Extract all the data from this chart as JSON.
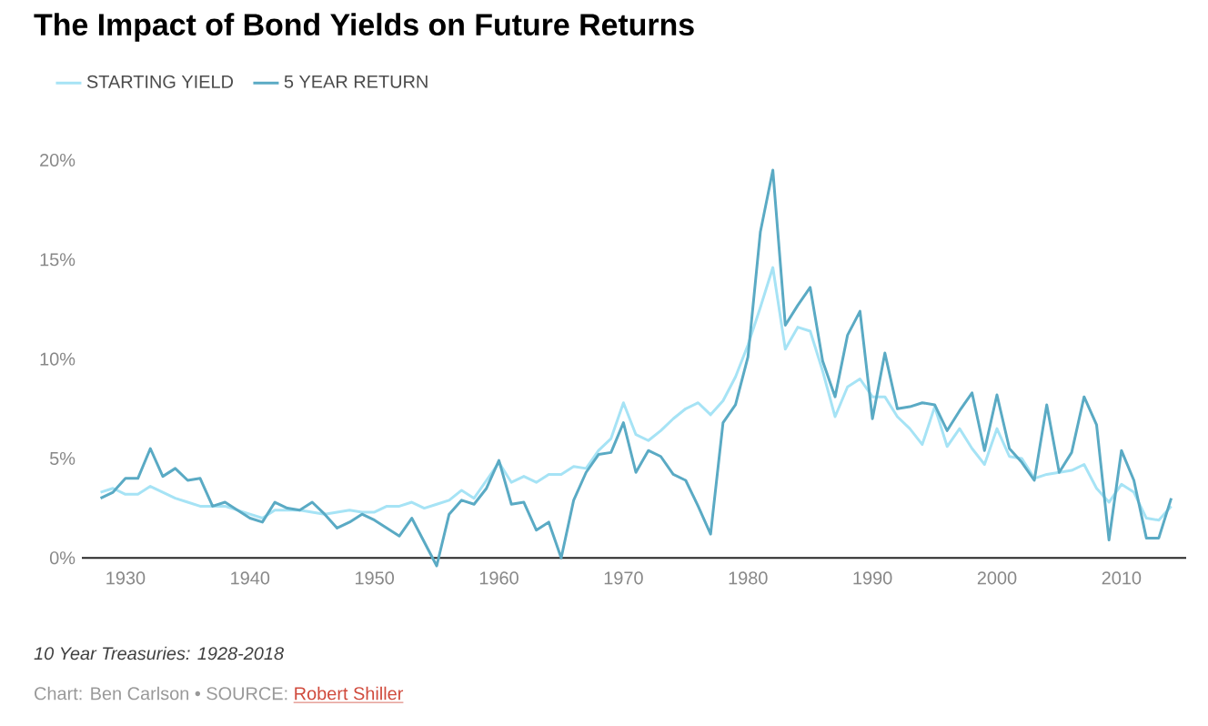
{
  "chart_data": {
    "type": "line",
    "title": "The Impact of Bond Yields on Future Returns",
    "x": [
      1928,
      1929,
      1930,
      1931,
      1932,
      1933,
      1934,
      1935,
      1936,
      1937,
      1938,
      1939,
      1940,
      1941,
      1942,
      1943,
      1944,
      1945,
      1946,
      1947,
      1948,
      1949,
      1950,
      1951,
      1952,
      1953,
      1954,
      1955,
      1956,
      1957,
      1958,
      1959,
      1960,
      1961,
      1962,
      1963,
      1964,
      1965,
      1966,
      1967,
      1968,
      1969,
      1970,
      1971,
      1972,
      1973,
      1974,
      1975,
      1976,
      1977,
      1978,
      1979,
      1980,
      1981,
      1982,
      1983,
      1984,
      1985,
      1986,
      1987,
      1988,
      1989,
      1990,
      1991,
      1992,
      1993,
      1994,
      1995,
      1996,
      1997,
      1998,
      1999,
      2000,
      2001,
      2002,
      2003,
      2004,
      2005,
      2006,
      2007,
      2008,
      2009,
      2010,
      2011,
      2012,
      2013,
      2014
    ],
    "series": [
      {
        "name": "STARTING YIELD",
        "color": "#a6e3f5",
        "values": [
          3.3,
          3.5,
          3.2,
          3.2,
          3.6,
          3.3,
          3.0,
          2.8,
          2.6,
          2.6,
          2.6,
          2.4,
          2.2,
          2.0,
          2.4,
          2.4,
          2.4,
          2.3,
          2.2,
          2.3,
          2.4,
          2.3,
          2.3,
          2.6,
          2.6,
          2.8,
          2.5,
          2.7,
          2.9,
          3.4,
          3.0,
          3.9,
          4.8,
          3.8,
          4.1,
          3.8,
          4.2,
          4.2,
          4.6,
          4.5,
          5.4,
          6.0,
          7.8,
          6.2,
          5.9,
          6.4,
          7.0,
          7.5,
          7.8,
          7.2,
          7.9,
          9.1,
          10.7,
          12.6,
          14.6,
          10.5,
          11.6,
          11.4,
          9.4,
          7.1,
          8.6,
          9.0,
          8.1,
          8.1,
          7.1,
          6.5,
          5.7,
          7.6,
          5.6,
          6.5,
          5.5,
          4.7,
          6.5,
          5.1,
          5.0,
          4.0,
          4.2,
          4.3,
          4.4,
          4.7,
          3.5,
          2.8,
          3.7,
          3.3,
          2.0,
          1.9,
          2.6
        ]
      },
      {
        "name": "5 YEAR RETURN",
        "color": "#5aaac4",
        "values": [
          3.0,
          3.3,
          4.0,
          4.0,
          5.5,
          4.1,
          4.5,
          3.9,
          4.0,
          2.6,
          2.8,
          2.4,
          2.0,
          1.8,
          2.8,
          2.5,
          2.4,
          2.8,
          2.2,
          1.5,
          1.8,
          2.2,
          1.9,
          1.5,
          1.1,
          2.0,
          0.8,
          -0.4,
          2.2,
          2.9,
          2.7,
          3.5,
          4.9,
          2.7,
          2.8,
          1.4,
          1.8,
          0.0,
          2.9,
          4.3,
          5.2,
          5.3,
          6.8,
          4.3,
          5.4,
          5.1,
          4.2,
          3.9,
          2.6,
          1.2,
          6.8,
          7.7,
          10.1,
          16.4,
          19.5,
          11.7,
          12.7,
          13.6,
          9.9,
          8.1,
          11.2,
          12.4,
          7.0,
          10.3,
          7.5,
          7.6,
          7.8,
          7.7,
          6.4,
          7.4,
          8.3,
          5.4,
          8.2,
          5.5,
          4.8,
          3.9,
          7.7,
          4.3,
          5.3,
          8.1,
          6.7,
          0.9,
          5.4,
          3.9,
          1.0,
          1.0,
          3.0
        ]
      }
    ],
    "xlim": [
      1926.5,
      2015.2
    ],
    "xticks": [
      1930,
      1940,
      1950,
      1960,
      1970,
      1980,
      1990,
      2000,
      2010
    ],
    "ylim": [
      -0.4,
      20
    ],
    "yticks": [
      {
        "value": 0,
        "label": "0%"
      },
      {
        "value": 5,
        "label": "5%"
      },
      {
        "value": 10,
        "label": "10%"
      },
      {
        "value": 15,
        "label": "15%"
      },
      {
        "value": 20,
        "label": "20%"
      }
    ],
    "grid": false,
    "legend": "top left",
    "marker": "none",
    "line_style": "solid",
    "annotations": [
      "10 Year Treasuries: 1928-2018",
      "Chart: Ben Carlson • SOURCE:",
      "Robert Shiller"
    ]
  }
}
